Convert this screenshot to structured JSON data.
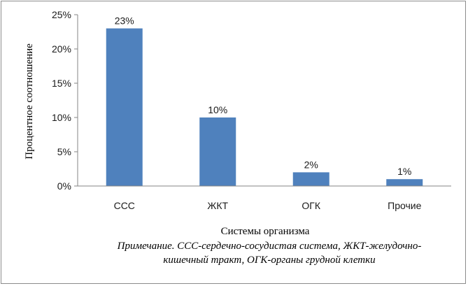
{
  "chart_data": {
    "type": "bar",
    "categories": [
      "ССС",
      "ЖКТ",
      "ОГК",
      "Прочие"
    ],
    "values": [
      23,
      10,
      2,
      1
    ],
    "data_labels": [
      "23%",
      "10%",
      "2%",
      "1%"
    ],
    "y_ticks": [
      "0%",
      "5%",
      "10%",
      "15%",
      "20%",
      "25%"
    ],
    "ylim": [
      0,
      25
    ],
    "xlabel": "Системы организма",
    "ylabel": "Процентное соотношение",
    "grid": false,
    "legend": "none",
    "bar_color": "#4f81bd"
  },
  "note": "Примечание. ССС-сердечно-сосудистая система, ЖКТ-желудочно-кишечный тракт, ОГК-органы грудной клетки"
}
